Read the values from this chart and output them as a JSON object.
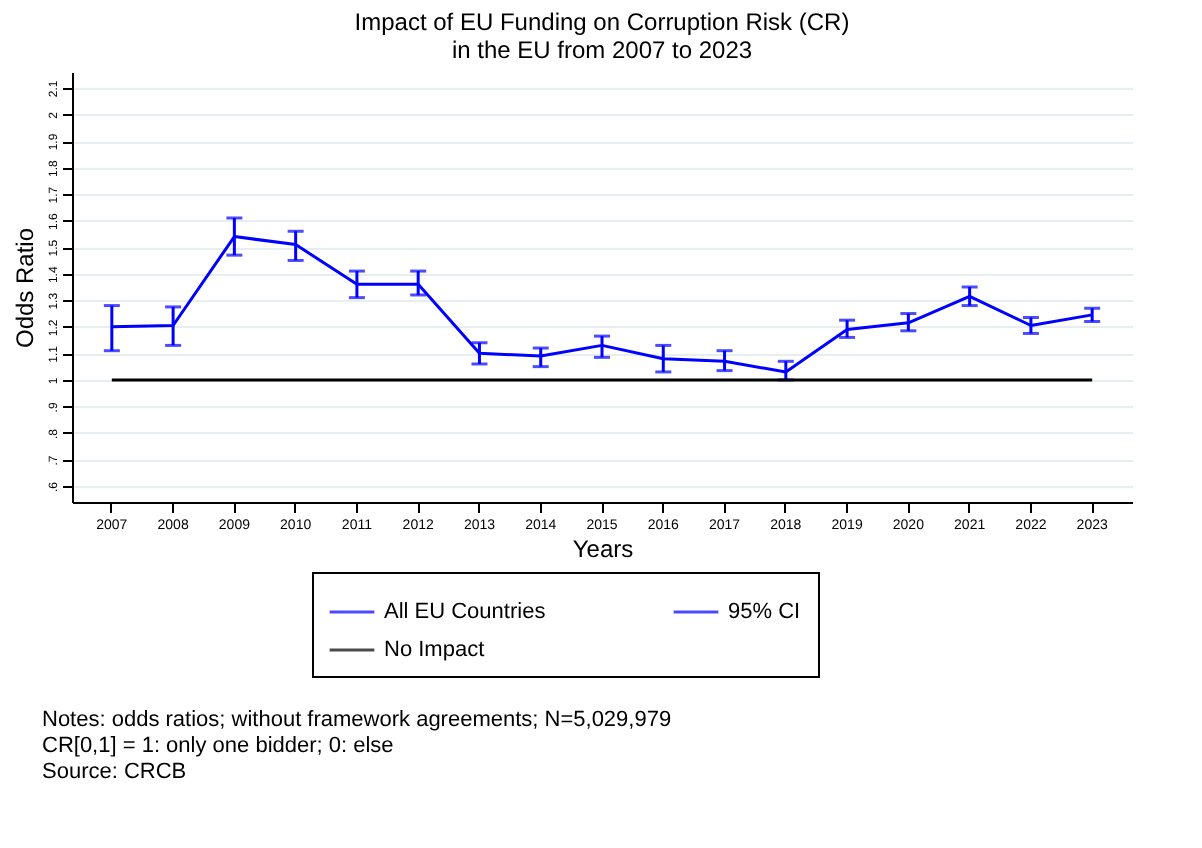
{
  "chart_data": {
    "type": "line",
    "title": "Impact of EU Funding on Corruption Risk (CR)\nin the EU from 2007 to 2023",
    "xlabel": "Years",
    "ylabel": "Odds Ratio",
    "categories": [
      "2007",
      "2008",
      "2009",
      "2010",
      "2011",
      "2012",
      "2013",
      "2014",
      "2015",
      "2016",
      "2017",
      "2018",
      "2019",
      "2020",
      "2021",
      "2022",
      "2023"
    ],
    "series": [
      {
        "name": "All EU Countries",
        "color": "#0000ff",
        "values": [
          1.2,
          1.205,
          1.54,
          1.51,
          1.36,
          1.36,
          1.1,
          1.09,
          1.13,
          1.08,
          1.07,
          1.03,
          1.19,
          1.215,
          1.315,
          1.205,
          1.245
        ],
        "errors": [
          [
            1.11,
            1.28
          ],
          [
            1.13,
            1.275
          ],
          [
            1.47,
            1.61
          ],
          [
            1.45,
            1.56
          ],
          [
            1.31,
            1.41
          ],
          [
            1.32,
            1.41
          ],
          [
            1.06,
            1.14
          ],
          [
            1.05,
            1.12
          ],
          [
            1.085,
            1.165
          ],
          [
            1.03,
            1.13
          ],
          [
            1.035,
            1.11
          ],
          [
            1.0,
            1.07
          ],
          [
            1.16,
            1.225
          ],
          [
            1.185,
            1.25
          ],
          [
            1.28,
            1.35
          ],
          [
            1.175,
            1.235
          ],
          [
            1.22,
            1.27
          ]
        ]
      }
    ],
    "ref_lines": [
      {
        "axis": "y",
        "value": 1,
        "label": "No Impact",
        "color": "#000000"
      }
    ],
    "ylim": [
      0.54,
      2.16
    ],
    "yticks": [
      {
        "value": 0.6,
        "label": ".6"
      },
      {
        "value": 0.7,
        "label": ".7"
      },
      {
        "value": 0.8,
        "label": ".8"
      },
      {
        "value": 0.9,
        "label": ".9"
      },
      1,
      1.1,
      1.2,
      1.3,
      1.4,
      1.5,
      1.6,
      1.7,
      1.8,
      1.9,
      2,
      2.1
    ],
    "grid": "y",
    "legend": "bottom",
    "annotations": [
      "95% CI",
      "Notes: odds ratios; without framework agreements; N=5,029,979",
      "CR[0,1] = 1: only one bidder; 0: else",
      "Source: CRCB"
    ]
  }
}
